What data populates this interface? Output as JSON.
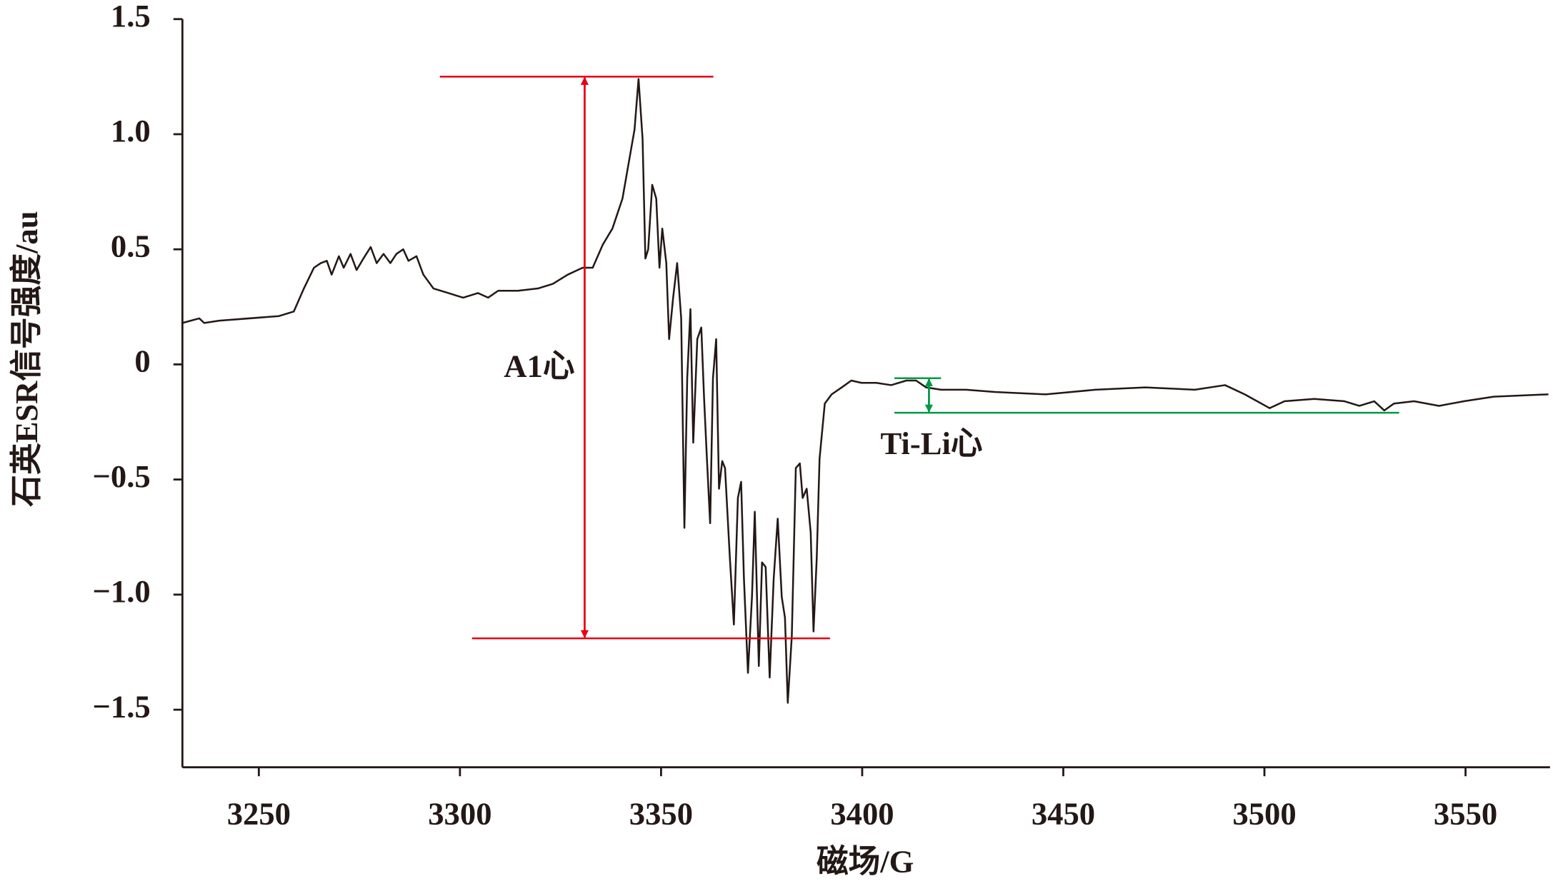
{
  "chart_data": {
    "type": "line",
    "xlabel": "磁场/G",
    "ylabel": "石英ESR信号强度/au",
    "xlim": [
      3231,
      3571
    ],
    "ylim": [
      -1.75,
      1.5
    ],
    "xticks": [
      3250,
      3300,
      3350,
      3400,
      3450,
      3500,
      3550
    ],
    "yticks": [
      1.5,
      {
        "value": 1,
        "label": "1.0"
      },
      0.5,
      0,
      {
        "value": -0.5,
        "label": "−0.5"
      },
      {
        "value": -1,
        "label": "−1.0"
      },
      {
        "value": -1.5,
        "label": "−1.5"
      }
    ],
    "color": "#231815",
    "x": [
      3231.0,
      3235.2,
      3236.4,
      3240.2,
      3247.6,
      3255.0,
      3258.7,
      3261.2,
      3263.7,
      3265.4,
      3266.9,
      3268.1,
      3269.9,
      3271.1,
      3272.8,
      3274.3,
      3276.0,
      3277.8,
      3279.3,
      3281.0,
      3282.7,
      3284.2,
      3285.9,
      3287.2,
      3289.2,
      3290.9,
      3293.4,
      3297.1,
      3300.8,
      3304.5,
      3307.0,
      3309.5,
      3314.4,
      3319.4,
      3323.1,
      3326.8,
      3330.5,
      3333.0,
      3335.5,
      3337.9,
      3340.4,
      3342.1,
      3343.4,
      3344.4,
      3345.4,
      3346.1,
      3346.8,
      3347.8,
      3348.8,
      3349.6,
      3350.3,
      3351.3,
      3352.0,
      3353.0,
      3354.0,
      3355.0,
      3355.8,
      3356.5,
      3357.3,
      3358.0,
      3359.0,
      3360.0,
      3360.7,
      3361.4,
      3362.2,
      3362.9,
      3363.7,
      3364.4,
      3365.2,
      3365.9,
      3367.1,
      3368.1,
      3369.1,
      3369.9,
      3370.6,
      3371.6,
      3372.6,
      3373.3,
      3374.3,
      3375.1,
      3376.0,
      3377.0,
      3378.0,
      3379.0,
      3380.0,
      3380.8,
      3381.5,
      3382.5,
      3383.5,
      3384.5,
      3385.2,
      3386.2,
      3387.2,
      3387.9,
      3388.7,
      3389.4,
      3390.7,
      3392.4,
      3394.9,
      3397.3,
      3399.8,
      3403.5,
      3407.2,
      3411.0,
      3413.4,
      3415.9,
      3419.6,
      3425.8,
      3433.2,
      3445.6,
      3458.0,
      3470.4,
      3482.7,
      3490.2,
      3495.1,
      3501.3,
      3505.0,
      3512.4,
      3519.9,
      3523.6,
      3527.3,
      3529.8,
      3532.2,
      3537.2,
      3543.4,
      3549.6,
      3557.0,
      3570.6
    ],
    "values": [
      0.18,
      0.2,
      0.18,
      0.19,
      0.2,
      0.21,
      0.23,
      0.33,
      0.42,
      0.44,
      0.45,
      0.39,
      0.47,
      0.42,
      0.48,
      0.41,
      0.46,
      0.51,
      0.44,
      0.48,
      0.44,
      0.48,
      0.5,
      0.45,
      0.47,
      0.39,
      0.33,
      0.31,
      0.29,
      0.31,
      0.29,
      0.32,
      0.32,
      0.33,
      0.35,
      0.39,
      0.42,
      0.42,
      0.52,
      0.59,
      0.72,
      0.89,
      1.02,
      1.24,
      0.98,
      0.46,
      0.5,
      0.78,
      0.72,
      0.42,
      0.59,
      0.44,
      0.11,
      0.29,
      0.44,
      0.2,
      -0.71,
      -0.06,
      0.24,
      -0.34,
      0.11,
      0.16,
      -0.15,
      -0.41,
      -0.69,
      -0.06,
      0.11,
      -0.54,
      -0.42,
      -0.45,
      -0.84,
      -1.13,
      -0.58,
      -0.51,
      -0.93,
      -1.34,
      -1.01,
      -0.64,
      -1.31,
      -0.86,
      -0.88,
      -1.36,
      -0.93,
      -0.67,
      -1.01,
      -1.1,
      -1.47,
      -1.18,
      -0.45,
      -0.43,
      -0.58,
      -0.54,
      -0.73,
      -1.16,
      -0.84,
      -0.41,
      -0.17,
      -0.13,
      -0.1,
      -0.07,
      -0.08,
      -0.08,
      -0.09,
      -0.07,
      -0.07,
      -0.1,
      -0.11,
      -0.11,
      -0.12,
      -0.13,
      -0.11,
      -0.1,
      -0.11,
      -0.09,
      -0.13,
      -0.19,
      -0.16,
      -0.15,
      -0.16,
      -0.18,
      -0.16,
      -0.2,
      -0.17,
      -0.16,
      -0.18,
      -0.16,
      -0.14,
      -0.13
    ],
    "annotations": [
      {
        "text": "A1心",
        "color": "#e60012",
        "x": 3331,
        "top": {
          "y": 1.25,
          "x0": 3295,
          "x1": 3363
        },
        "bottom": {
          "y": -1.19,
          "x0": 3303,
          "x1": 3392
        }
      },
      {
        "text": "Ti-Li心",
        "color": "#009944",
        "x": 3416.6,
        "top": {
          "y": -0.06,
          "x0": 3408,
          "x1": 3419.6
        },
        "bottom": {
          "y": -0.21,
          "x0": 3408,
          "x1": 3533.5
        }
      }
    ]
  }
}
